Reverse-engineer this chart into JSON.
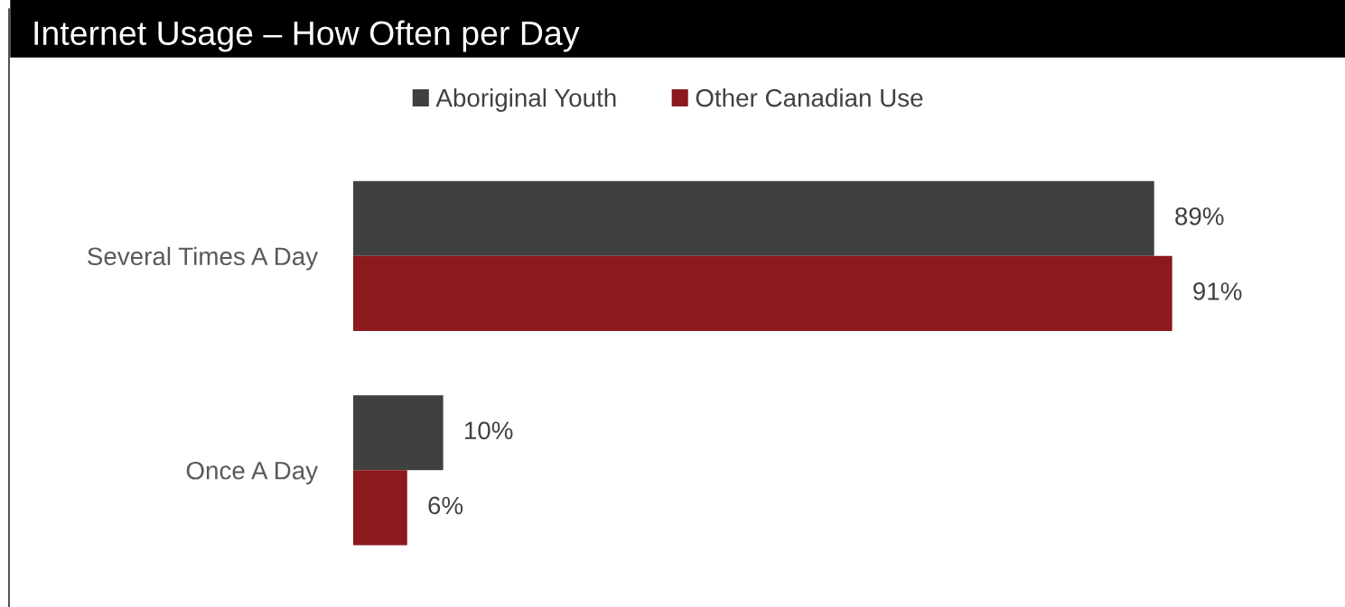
{
  "chart_data": {
    "type": "bar",
    "orientation": "horizontal",
    "title": "Internet Usage – How Often per Day",
    "categories": [
      "Several Times A Day",
      "Once A Day"
    ],
    "series": [
      {
        "name": "Aboriginal Youth",
        "color": "#404040",
        "values": [
          89,
          10
        ],
        "value_labels": [
          "89%",
          "10%"
        ]
      },
      {
        "name": "Other Canadian Use",
        "color": "#8b191e",
        "values": [
          91,
          6
        ],
        "value_labels": [
          "91%",
          "6%"
        ]
      }
    ],
    "legend": "top"
  }
}
